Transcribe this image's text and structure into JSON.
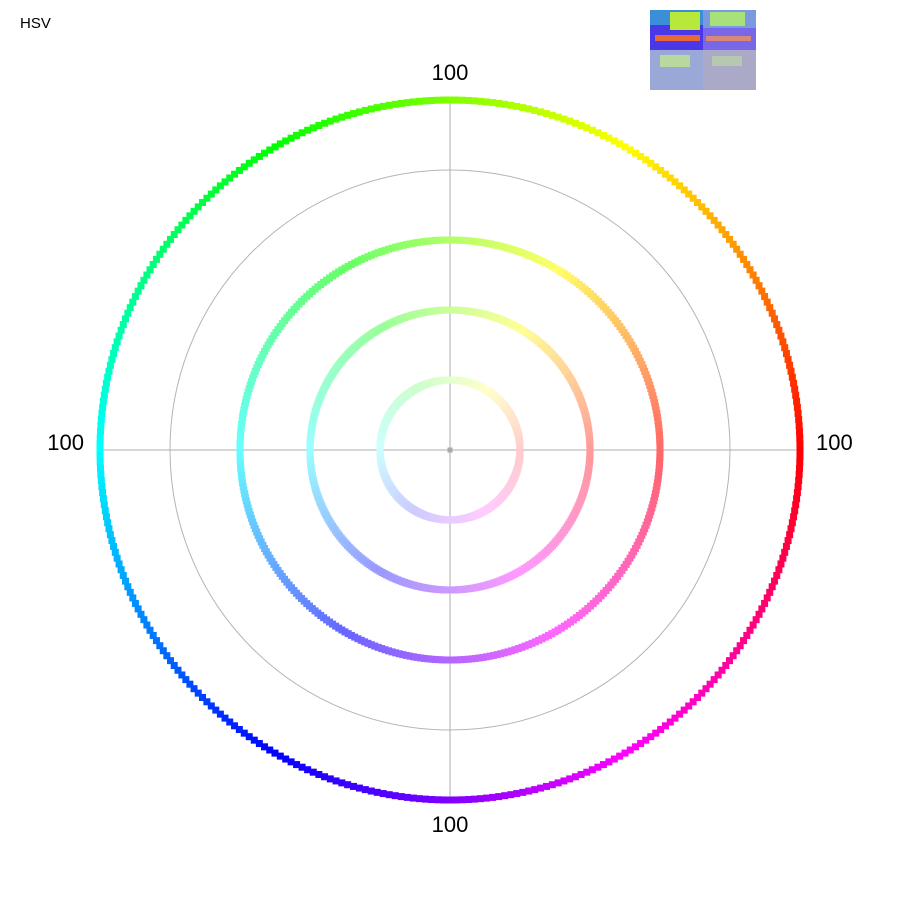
{
  "chart_data": {
    "type": "hue-rings",
    "title": "HSV",
    "rlim": [
      0,
      100
    ],
    "grid_circles": [
      60,
      80
    ],
    "rings": [
      100,
      60,
      40,
      20
    ],
    "hue_range": [
      0,
      360
    ],
    "grid": true
  }
}
